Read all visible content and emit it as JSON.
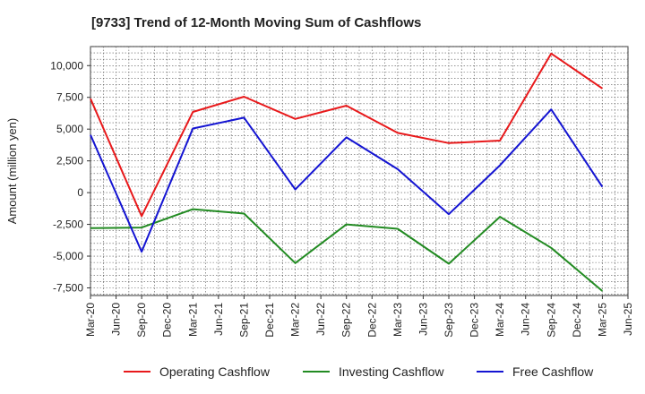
{
  "chart_data": {
    "type": "line",
    "title": "[9733]  Trend of 12-Month Moving Sum of Cashflows",
    "xlabel": "",
    "ylabel": "Amount (million yen)",
    "x_tick_labels": [
      "Mar-20",
      "Jun-20",
      "Sep-20",
      "Dec-20",
      "Mar-21",
      "Jun-21",
      "Sep-21",
      "Dec-21",
      "Mar-22",
      "Jun-22",
      "Sep-22",
      "Dec-22",
      "Mar-23",
      "Jun-23",
      "Sep-23",
      "Dec-23",
      "Mar-24",
      "Jun-24",
      "Sep-24",
      "Dec-24",
      "Mar-25",
      "Jun-25"
    ],
    "y_ticks": [
      -7500,
      -5000,
      -2500,
      0,
      2500,
      5000,
      7500,
      10000
    ],
    "y_tick_labels": [
      "-7,500",
      "-5,000",
      "-2,500",
      "0",
      "2,500",
      "5,000",
      "7,500",
      "10,000"
    ],
    "ylim": [
      -8100,
      11500
    ],
    "grid": true,
    "legend_position": "bottom",
    "series": [
      {
        "name": "Operating Cashflow",
        "color": "#e8191b",
        "points": [
          {
            "x": "Mar-20",
            "y": 7400
          },
          {
            "x": "Sep-20",
            "y": -1850
          },
          {
            "x": "Mar-21",
            "y": 6350
          },
          {
            "x": "Sep-21",
            "y": 7550
          },
          {
            "x": "Mar-22",
            "y": 5800
          },
          {
            "x": "Sep-22",
            "y": 6850
          },
          {
            "x": "Mar-23",
            "y": 4700
          },
          {
            "x": "Sep-23",
            "y": 3900
          },
          {
            "x": "Mar-24",
            "y": 4100
          },
          {
            "x": "Sep-24",
            "y": 10950
          },
          {
            "x": "Mar-25",
            "y": 8200
          }
        ]
      },
      {
        "name": "Investing Cashflow",
        "color": "#228b22",
        "points": [
          {
            "x": "Mar-20",
            "y": -2800
          },
          {
            "x": "Sep-20",
            "y": -2750
          },
          {
            "x": "Mar-21",
            "y": -1300
          },
          {
            "x": "Sep-21",
            "y": -1650
          },
          {
            "x": "Mar-22",
            "y": -5550
          },
          {
            "x": "Sep-22",
            "y": -2500
          },
          {
            "x": "Mar-23",
            "y": -2850
          },
          {
            "x": "Sep-23",
            "y": -5600
          },
          {
            "x": "Mar-24",
            "y": -1900
          },
          {
            "x": "Sep-24",
            "y": -4350
          },
          {
            "x": "Mar-25",
            "y": -7750
          }
        ]
      },
      {
        "name": "Free Cashflow",
        "color": "#1414d2",
        "points": [
          {
            "x": "Mar-20",
            "y": 4550
          },
          {
            "x": "Sep-20",
            "y": -4650
          },
          {
            "x": "Mar-21",
            "y": 5050
          },
          {
            "x": "Sep-21",
            "y": 5900
          },
          {
            "x": "Mar-22",
            "y": 250
          },
          {
            "x": "Sep-22",
            "y": 4350
          },
          {
            "x": "Mar-23",
            "y": 1850
          },
          {
            "x": "Sep-23",
            "y": -1700
          },
          {
            "x": "Mar-24",
            "y": 2150
          },
          {
            "x": "Sep-24",
            "y": 6550
          },
          {
            "x": "Mar-25",
            "y": 450
          }
        ]
      }
    ]
  }
}
